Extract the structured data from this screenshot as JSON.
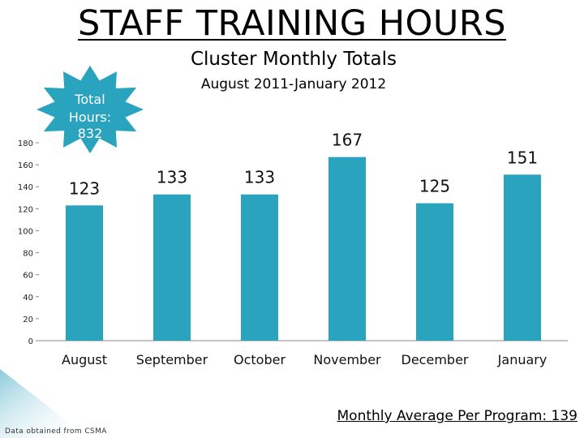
{
  "page": {
    "title": "STAFF TRAINING HOURS",
    "source_note": "Data obtained from CSMA",
    "average_note": "Monthly Average Per Program: 139"
  },
  "callout": {
    "line1": "Total",
    "line2": "Hours:",
    "line3": "832",
    "fill_color": "#2aa3bf"
  },
  "chart_data": {
    "type": "bar",
    "title": "Cluster Monthly Totals",
    "subtitle": "August 2011-January 2012",
    "xlabel": "",
    "ylabel": "",
    "categories": [
      "August",
      "September",
      "October",
      "November",
      "December",
      "January"
    ],
    "values": [
      123,
      133,
      133,
      167,
      125,
      151
    ],
    "data_labels": [
      "123",
      "133",
      "133",
      "167",
      "125",
      "151"
    ],
    "yticks": [
      0,
      20,
      40,
      60,
      80,
      100,
      120,
      140,
      160,
      180
    ],
    "ylim": [
      0,
      180
    ],
    "grid": false,
    "legend": "none",
    "bar_color": "#2aa3bf"
  }
}
